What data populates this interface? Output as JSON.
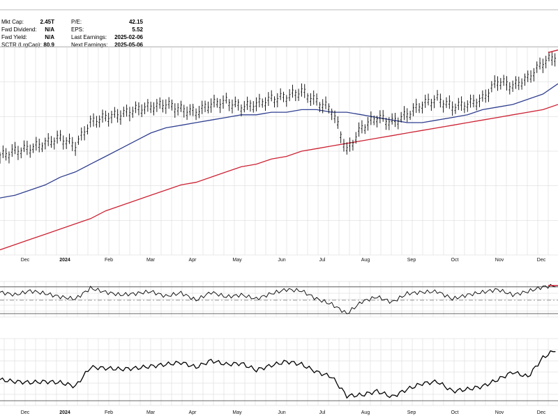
{
  "stats": {
    "left": [
      {
        "label": "Mkt Cap:",
        "value": "2.45T"
      },
      {
        "label": "Fwd Dividend:",
        "value": "N/A"
      },
      {
        "label": "Fwd Yield:",
        "value": "N/A"
      },
      {
        "label": "SCTR (LrgCap):",
        "value": "80.9"
      }
    ],
    "right": [
      {
        "label": "P/E:",
        "value": "42.15"
      },
      {
        "label": "EPS:",
        "value": "5.52"
      },
      {
        "label": "Last Earnings:",
        "value": "2025-02-06"
      },
      {
        "label": "Next Earnings:",
        "value": "2025-05-06"
      }
    ]
  },
  "colors": {
    "price": "#000000",
    "ma50": "#2f3f8f",
    "ma200": "#cc2233",
    "grid": "#d4d4d4",
    "band": "#555555"
  },
  "chart_data": [
    {
      "type": "line",
      "panel": "price",
      "style": "ohlc bars",
      "x_ticks": [
        "Dec",
        "2024",
        "Feb",
        "Mar",
        "Apr",
        "May",
        "Jun",
        "Jul",
        "Aug",
        "Sep",
        "Oct",
        "Nov",
        "Dec"
      ],
      "x_tick_bold": "2024",
      "x": [
        "Nov 23",
        "Dec 1",
        "Dec 15",
        "Jan 1",
        "Jan 10",
        "Jan 20",
        "Feb 1",
        "Feb 15",
        "Mar 1",
        "Mar 15",
        "Apr 1",
        "Apr 10",
        "Apr 20",
        "May 1",
        "May 10",
        "May 20",
        "Jun 1",
        "Jun 10",
        "Jun 20",
        "Jul 1",
        "Jul 10",
        "Jul 20",
        "Aug 1",
        "Aug 5",
        "Aug 10",
        "Aug 20",
        "Sep 1",
        "Sep 10",
        "Sep 20",
        "Oct 1",
        "Oct 10",
        "Oct 20",
        "Nov 1",
        "Nov 10",
        "Nov 20",
        "Dec 1",
        "Dec 10",
        "Dec 20"
      ],
      "series": [
        {
          "role": "price",
          "values": [
            28,
            30,
            31,
            33,
            35,
            32,
            41,
            43,
            44,
            46,
            47,
            48,
            46,
            45,
            48,
            49,
            47,
            48,
            50,
            51,
            53,
            49,
            46,
            30,
            39,
            43,
            41,
            44,
            48,
            50,
            47,
            48,
            50,
            57,
            55,
            58,
            64,
            67
          ]
        },
        {
          "role": "ma50",
          "values": [
            12,
            13,
            15,
            17,
            20,
            22,
            25,
            28,
            31,
            34,
            37,
            39,
            40,
            41,
            42,
            43,
            44,
            44,
            45,
            45,
            46,
            46,
            45,
            45,
            44,
            43,
            42,
            41,
            41,
            42,
            43,
            44,
            46,
            47,
            48,
            50,
            52,
            56
          ]
        },
        {
          "role": "ma200",
          "values": [
            -8,
            -6,
            -4,
            -2,
            0,
            2,
            4,
            7,
            9,
            11,
            13,
            15,
            17,
            18,
            20,
            22,
            24,
            25,
            27,
            28,
            30,
            31,
            32,
            33,
            34,
            35,
            36,
            37,
            38,
            39,
            40,
            41,
            42,
            43,
            44,
            45,
            46,
            48
          ]
        }
      ],
      "ylim": [
        -10,
        70
      ],
      "grid": true
    },
    {
      "type": "line",
      "panel": "oscillator",
      "x": [
        "Nov 23",
        "Dec 1",
        "Dec 15",
        "Jan 1",
        "Jan 10",
        "Jan 20",
        "Feb 1",
        "Feb 15",
        "Mar 1",
        "Mar 15",
        "Apr 1",
        "Apr 10",
        "Apr 20",
        "May 1",
        "May 10",
        "May 20",
        "Jun 1",
        "Jun 10",
        "Jun 20",
        "Jul 1",
        "Jul 10",
        "Jul 20",
        "Aug 1",
        "Aug 5",
        "Aug 10",
        "Aug 20",
        "Sep 1",
        "Sep 10",
        "Sep 20",
        "Oct 1",
        "Oct 10",
        "Oct 20",
        "Nov 1",
        "Nov 10",
        "Nov 20",
        "Dec 1",
        "Dec 10",
        "Dec 20"
      ],
      "series": [
        {
          "values": [
            62,
            58,
            64,
            60,
            55,
            52,
            68,
            62,
            58,
            60,
            63,
            56,
            61,
            50,
            62,
            55,
            58,
            52,
            60,
            66,
            64,
            52,
            44,
            30,
            48,
            55,
            47,
            60,
            62,
            63,
            52,
            58,
            62,
            66,
            58,
            63,
            70,
            72
          ]
        }
      ],
      "levels": [
        70,
        50,
        30
      ],
      "ylim": [
        25,
        78
      ],
      "grid": true
    },
    {
      "type": "line",
      "panel": "indicator",
      "x_ticks": [
        "Dec",
        "2024",
        "Feb",
        "Mar",
        "Apr",
        "May",
        "Jun",
        "Jul",
        "Aug",
        "Sep",
        "Oct",
        "Nov",
        "Dec"
      ],
      "x_tick_bold": "2024",
      "x": [
        "Nov 23",
        "Dec 1",
        "Dec 15",
        "Jan 1",
        "Jan 10",
        "Jan 20",
        "Feb 1",
        "Feb 15",
        "Mar 1",
        "Mar 15",
        "Apr 1",
        "Apr 10",
        "Apr 20",
        "May 1",
        "May 10",
        "May 20",
        "Jun 1",
        "Jun 10",
        "Jun 20",
        "Jul 1",
        "Jul 10",
        "Jul 20",
        "Aug 1",
        "Aug 5",
        "Aug 10",
        "Aug 20",
        "Sep 1",
        "Sep 10",
        "Sep 20",
        "Oct 1",
        "Oct 10",
        "Oct 20",
        "Nov 1",
        "Nov 10",
        "Nov 20",
        "Dec 1",
        "Dec 10",
        "Dec 20"
      ],
      "series": [
        {
          "values": [
            22,
            20,
            19,
            20,
            19,
            15,
            35,
            34,
            33,
            34,
            36,
            38,
            40,
            35,
            42,
            38,
            39,
            32,
            37,
            41,
            38,
            30,
            25,
            5,
            6,
            10,
            4,
            12,
            18,
            20,
            10,
            12,
            15,
            22,
            30,
            25,
            45,
            55
          ]
        }
      ],
      "levels": [
        0
      ],
      "ylim": [
        -5,
        65
      ],
      "grid": true
    }
  ]
}
